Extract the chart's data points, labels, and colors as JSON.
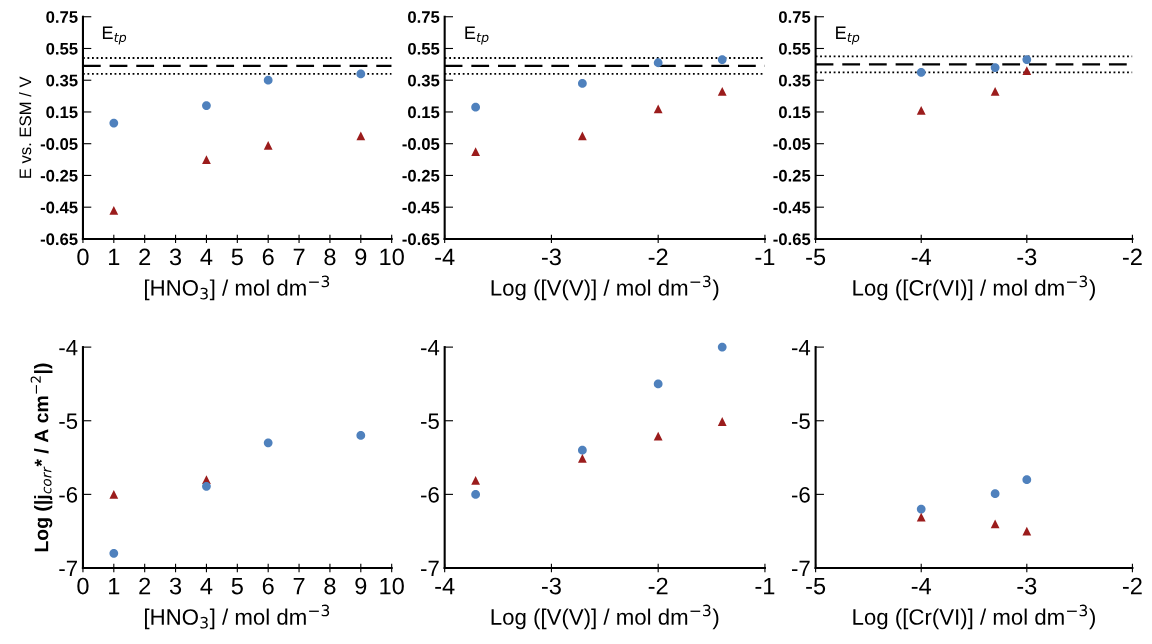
{
  "chart_data": [
    {
      "type": "scatter",
      "ylabel": "E vs. ESM / V",
      "xlabel": "[HNO$_{3}$] / mol dm$^{−3}$",
      "xlim": [
        0,
        10
      ],
      "xticks": [
        0,
        1,
        2,
        3,
        4,
        5,
        6,
        7,
        8,
        9,
        10
      ],
      "ylim": [
        -0.65,
        0.75
      ],
      "yticks": [
        -0.65,
        -0.45,
        -0.25,
        -0.05,
        0.15,
        0.35,
        0.55,
        0.75
      ],
      "annotations": [
        "E$_{tp}$"
      ],
      "ref_lines": [
        {
          "axis": "y",
          "value": 0.49,
          "line_style": "dotted",
          "color": "#000000"
        },
        {
          "axis": "y",
          "value": 0.44,
          "line_style": "dashed",
          "color": "#000000"
        },
        {
          "axis": "y",
          "value": 0.39,
          "line_style": "dotted",
          "color": "#000000"
        }
      ],
      "series": [
        {
          "color": "#4f81bd",
          "marker": "circle",
          "x": [
            1,
            4,
            6,
            9
          ],
          "values": [
            0.08,
            0.19,
            0.35,
            0.39
          ]
        },
        {
          "color": "#9b1c1c",
          "marker": "triangle",
          "x": [
            1,
            4,
            6,
            9
          ],
          "values": [
            -0.47,
            -0.15,
            -0.06,
            0.0
          ]
        }
      ]
    },
    {
      "type": "scatter",
      "xlabel": "Log ([V(V)] / mol dm$^{−3}$)",
      "xlim": [
        -4,
        -1
      ],
      "xticks": [
        -4,
        -3,
        -2,
        -1
      ],
      "ylim": [
        -0.65,
        0.75
      ],
      "yticks": [
        -0.65,
        -0.45,
        -0.25,
        -0.05,
        0.15,
        0.35,
        0.55,
        0.75
      ],
      "annotations": [
        "E$_{tp}$"
      ],
      "ref_lines": [
        {
          "axis": "y",
          "value": 0.49,
          "line_style": "dotted",
          "color": "#000000"
        },
        {
          "axis": "y",
          "value": 0.44,
          "line_style": "dashed",
          "color": "#000000"
        },
        {
          "axis": "y",
          "value": 0.39,
          "line_style": "dotted",
          "color": "#000000"
        }
      ],
      "series": [
        {
          "color": "#4f81bd",
          "marker": "circle",
          "x": [
            -3.71,
            -2.71,
            -2.0,
            -1.4
          ],
          "values": [
            0.18,
            0.33,
            0.46,
            0.48
          ]
        },
        {
          "color": "#9b1c1c",
          "marker": "triangle",
          "x": [
            -3.71,
            -2.71,
            -2.0,
            -1.4
          ],
          "values": [
            -0.1,
            0.0,
            0.17,
            0.28
          ]
        }
      ]
    },
    {
      "type": "scatter",
      "xlabel": "Log ([Cr(VI)] / mol dm$^{−3}$)",
      "xlim": [
        -5,
        -2
      ],
      "xticks": [
        -5,
        -4,
        -3,
        -2
      ],
      "ylim": [
        -0.65,
        0.75
      ],
      "yticks": [
        -0.65,
        -0.45,
        -0.25,
        -0.05,
        0.15,
        0.35,
        0.55,
        0.75
      ],
      "annotations": [
        "E$_{tp}$"
      ],
      "ref_lines": [
        {
          "axis": "y",
          "value": 0.5,
          "line_style": "dotted",
          "color": "#000000"
        },
        {
          "axis": "y",
          "value": 0.45,
          "line_style": "dashed",
          "color": "#000000"
        },
        {
          "axis": "y",
          "value": 0.4,
          "line_style": "dotted",
          "color": "#000000"
        }
      ],
      "series": [
        {
          "color": "#4f81bd",
          "marker": "circle",
          "x": [
            -4.0,
            -3.3,
            -3.0
          ],
          "values": [
            0.4,
            0.43,
            0.48
          ]
        },
        {
          "color": "#9b1c1c",
          "marker": "triangle",
          "x": [
            -4.0,
            -3.3,
            -3.0
          ],
          "values": [
            0.16,
            0.28,
            0.41
          ]
        }
      ]
    },
    {
      "type": "scatter",
      "ylabel": "Log (|j$_{corr}$* / A cm$^{−2}$|)",
      "xlabel": "[HNO$_{3}$] / mol dm$^{−3}$",
      "xlim": [
        0,
        10
      ],
      "xticks": [
        0,
        1,
        2,
        3,
        4,
        5,
        6,
        7,
        8,
        9,
        10
      ],
      "ylim": [
        -7,
        -4
      ],
      "yticks": [
        -7,
        -6,
        -5,
        -4
      ],
      "series": [
        {
          "color": "#9b1c1c",
          "marker": "triangle",
          "x": [
            1,
            4
          ],
          "values": [
            -6.0,
            -5.8
          ]
        },
        {
          "color": "#4f81bd",
          "marker": "circle",
          "x": [
            1,
            4,
            6,
            9
          ],
          "values": [
            -6.8,
            -5.89,
            -5.3,
            -5.2
          ]
        }
      ]
    },
    {
      "type": "scatter",
      "xlabel": "Log ([V(V)] / mol dm$^{−3}$)",
      "xlim": [
        -4,
        -1
      ],
      "xticks": [
        -4,
        -3,
        -2,
        -1
      ],
      "ylim": [
        -7,
        -4
      ],
      "yticks": [
        -7,
        -6,
        -5,
        -4
      ],
      "series": [
        {
          "color": "#4f81bd",
          "marker": "circle",
          "x": [
            -3.71,
            -2.71,
            -2.0,
            -1.4
          ],
          "values": [
            -6.0,
            -5.4,
            -4.5,
            -4.0
          ]
        },
        {
          "color": "#9b1c1c",
          "marker": "triangle",
          "x": [
            -3.71,
            -2.71,
            -2.0,
            -1.4
          ],
          "values": [
            -5.81,
            -5.51,
            -5.21,
            -5.01
          ]
        }
      ]
    },
    {
      "type": "scatter",
      "xlabel": "Log ([Cr(VI)] / mol dm$^{−3}$)",
      "xlim": [
        -5,
        -2
      ],
      "xticks": [
        -5,
        -4,
        -3,
        -2
      ],
      "ylim": [
        -7,
        -4
      ],
      "yticks": [
        -7,
        -6,
        -5,
        -4
      ],
      "series": [
        {
          "color": "#4f81bd",
          "marker": "circle",
          "x": [
            -4.0,
            -3.3,
            -3.0
          ],
          "values": [
            -6.2,
            -5.99,
            -5.8
          ]
        },
        {
          "color": "#9b1c1c",
          "marker": "triangle",
          "x": [
            -4.0,
            -3.3,
            -3.0
          ],
          "values": [
            -6.31,
            -6.4,
            -6.5
          ]
        }
      ]
    }
  ]
}
